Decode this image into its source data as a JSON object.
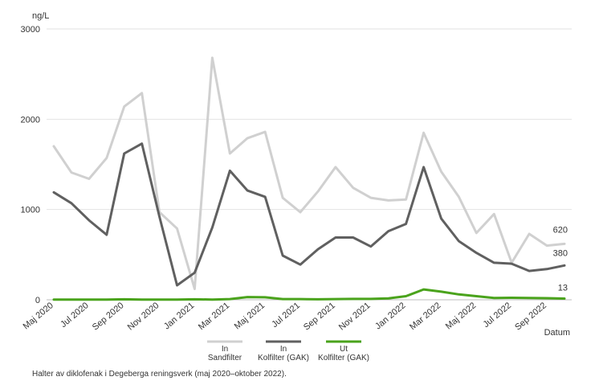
{
  "chart_data": {
    "type": "line",
    "unit_label": "ng/L",
    "xlabel": "Datum",
    "ylim": [
      0,
      3000
    ],
    "yticks": [
      "0",
      "1000",
      "2000",
      "3000"
    ],
    "tick_labels": [
      "Maj 2020",
      "Jul 2020",
      "Sep 2020",
      "Nov 2020",
      "Jan 2021",
      "Mar 2021",
      "Maj 2021",
      "Jul 2021",
      "Sep 2021",
      "Nov 2021",
      "Jan 2022",
      "Mar 2022",
      "Maj 2022",
      "Jul 2022",
      "Sep 2022"
    ],
    "grid": "horizontal",
    "legend_position": "bottom",
    "series": [
      {
        "legend": [
          "In",
          "Sandfilter"
        ],
        "color": "#d0d0d0",
        "end_label": "620",
        "values": [
          1700,
          1410,
          1340,
          1570,
          2140,
          2290,
          970,
          790,
          120,
          2680,
          1620,
          1790,
          1860,
          1130,
          970,
          1200,
          1470,
          1240,
          1130,
          1100,
          1110,
          1850,
          1420,
          1140,
          740,
          950,
          410,
          730,
          600,
          620
        ]
      },
      {
        "legend": [
          "In",
          "Kolfilter (GAK)"
        ],
        "color": "#606060",
        "end_label": "380",
        "values": [
          1190,
          1070,
          880,
          720,
          1620,
          1730,
          920,
          160,
          300,
          800,
          1430,
          1210,
          1140,
          490,
          390,
          560,
          690,
          690,
          590,
          760,
          840,
          1470,
          900,
          650,
          520,
          410,
          400,
          320,
          340,
          380
        ]
      },
      {
        "legend": [
          "Ut",
          "Kolfilter (GAK)"
        ],
        "color": "#4aa31c",
        "end_label": "13",
        "values": [
          2,
          2,
          2,
          2,
          5,
          3,
          3,
          3,
          5,
          3,
          8,
          30,
          28,
          8,
          8,
          5,
          8,
          10,
          10,
          15,
          40,
          115,
          90,
          60,
          40,
          20,
          22,
          20,
          18,
          13
        ]
      }
    ]
  },
  "caption": "Halter av diklofenak i Degeberga reningsverk (maj 2020–oktober 2022)."
}
